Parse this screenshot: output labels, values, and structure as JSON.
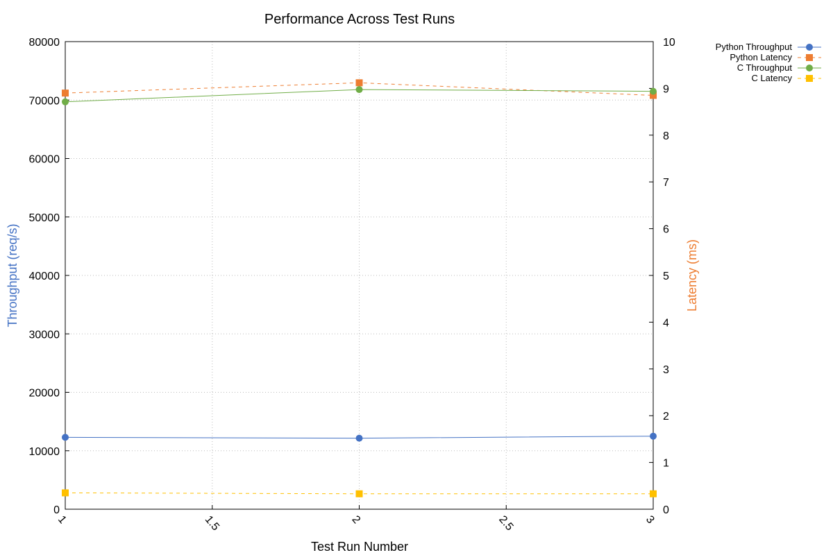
{
  "chart_data": {
    "type": "line",
    "title": "Performance Across Test Runs",
    "xlabel": "Test Run Number",
    "ylabel_left": "Throughput (req/s)",
    "ylabel_right": "Latency (ms)",
    "x": [
      1,
      2,
      3
    ],
    "xlim": [
      1,
      3
    ],
    "ylim_left": [
      0,
      80000
    ],
    "ylim_right": [
      0,
      10
    ],
    "x_ticks": [
      1,
      1.5,
      2,
      2.5,
      3
    ],
    "y_left_ticks": [
      0,
      10000,
      20000,
      30000,
      40000,
      50000,
      60000,
      70000,
      80000
    ],
    "y_right_ticks": [
      0,
      1,
      2,
      3,
      4,
      5,
      6,
      7,
      8,
      9,
      10
    ],
    "grid": true,
    "legend_position": "outside-top-right",
    "series": [
      {
        "name": "Python Throughput",
        "axis": "left",
        "values": [
          12300,
          12150,
          12500
        ],
        "color": "#4472c4",
        "marker": "circle",
        "dash": "solid"
      },
      {
        "name": "Python Latency",
        "axis": "right",
        "values": [
          8.9,
          9.12,
          8.85
        ],
        "color": "#ed7d31",
        "marker": "square",
        "dash": "dashed"
      },
      {
        "name": "C Throughput",
        "axis": "left",
        "values": [
          69700,
          71800,
          71500
        ],
        "color": "#70ad47",
        "marker": "circle",
        "dash": "solid"
      },
      {
        "name": "C Latency",
        "axis": "right",
        "values": [
          0.35,
          0.33,
          0.33
        ],
        "color": "#ffc000",
        "marker": "square",
        "dash": "dashed"
      }
    ],
    "colors": {
      "left_axis_title": "#4472c4",
      "right_axis_title": "#ed7d31",
      "grid": "#bbbbbb",
      "frame": "#000000"
    }
  }
}
